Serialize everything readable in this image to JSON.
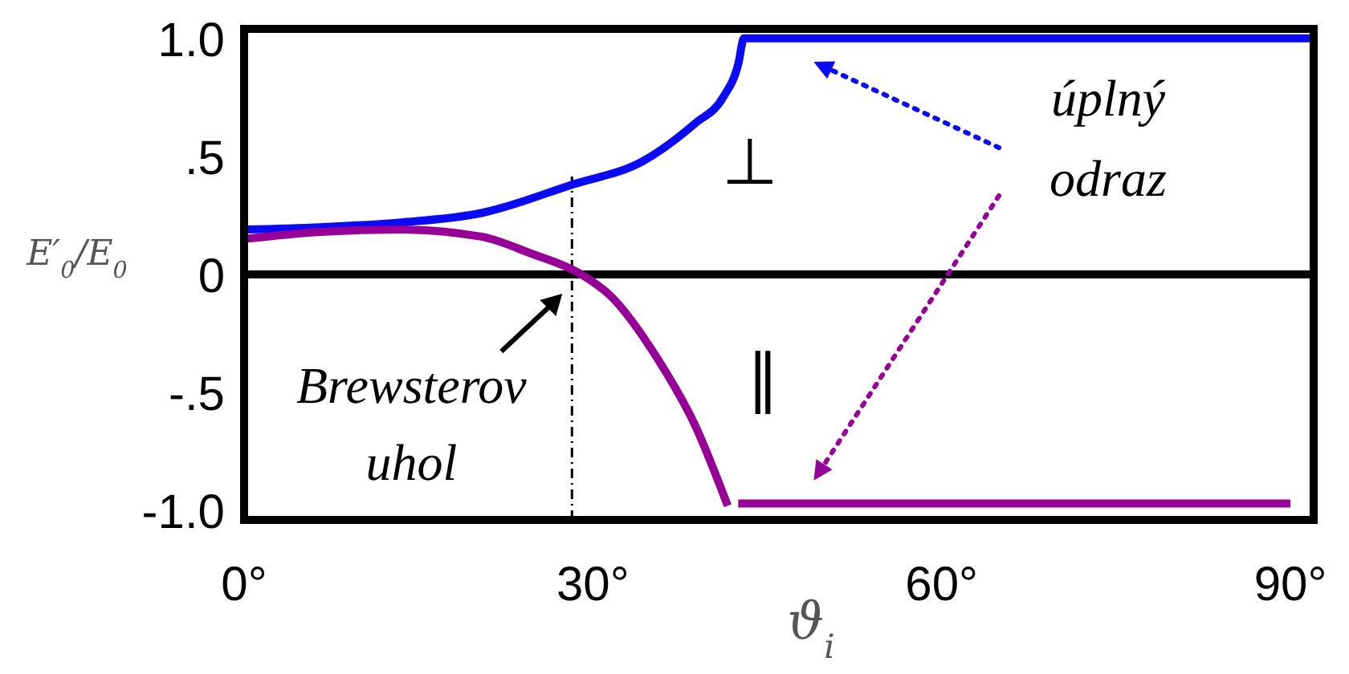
{
  "chart_data": {
    "type": "line",
    "xlabel": "ϑ$_{i}$",
    "ylabel": "E′$_{0}$/E$_{0}$",
    "xlim": [
      0,
      92
    ],
    "xticks": [
      {
        "value": 0,
        "label": "0°"
      },
      {
        "value": 30,
        "label": "30°"
      },
      {
        "value": 60,
        "label": "60°"
      },
      {
        "value": 90,
        "label": "90°"
      }
    ],
    "ylim": [
      -1.04,
      1.04
    ],
    "yticks": [
      {
        "value": 1,
        "label": "1.0"
      },
      {
        "value": 0.5,
        "label": ".5"
      },
      0,
      {
        "value": -0.5,
        "label": "-.5"
      },
      {
        "value": -1,
        "label": "-1.0"
      }
    ],
    "grid": false,
    "marker": "none",
    "line_style": "solid",
    "series": [
      {
        "color": "#0a0af5",
        "x": [
          0,
          6.6,
          13.5,
          20.4,
          28.2,
          34.3,
          38.8,
          41.2,
          42.5,
          43.0,
          92
        ],
        "values": [
          0.19,
          0.2,
          0.22,
          0.26,
          0.38,
          0.48,
          0.64,
          0.75,
          0.89,
          1.0,
          1.0
        ]
      },
      {
        "color": "#960096",
        "x": [
          0,
          6.6,
          13.5,
          20.4,
          24.6,
          29.0,
          31.5,
          35.6,
          38.8,
          41.6,
          42.0,
          42.5,
          90
        ],
        "values": [
          0.15,
          0.18,
          0.19,
          0.16,
          0.09,
          0,
          -0.09,
          -0.36,
          -0.64,
          -0.98,
          null,
          -0.97,
          -0.97
        ]
      }
    ],
    "ref_lines": [
      {
        "axis": "y",
        "value": 0,
        "color": "#000000",
        "line_style": "solid"
      },
      {
        "axis": "x",
        "value": 28.2,
        "color": "#000000",
        "line_style": "dashdot"
      }
    ],
    "annotations": [
      "⊥",
      "∥",
      {
        "text": "Brewsterov uhol",
        "x": 28.2,
        "y": 0
      },
      "úplný odraz"
    ]
  }
}
